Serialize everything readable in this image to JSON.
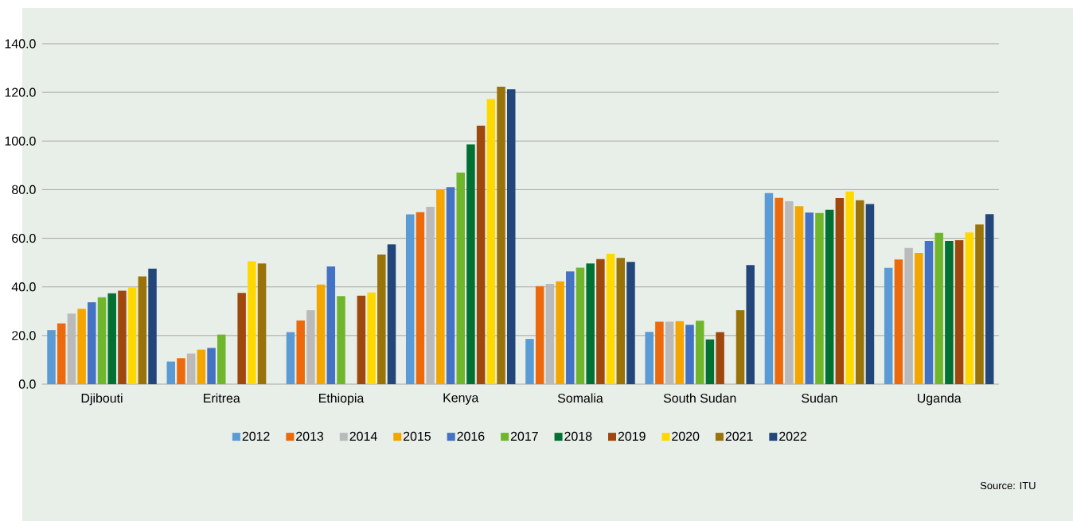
{
  "chart_data": {
    "type": "bar",
    "categories": [
      "Djibouti",
      "Eritrea",
      "Ethiopia",
      "Kenya",
      "Somalia",
      "South Sudan",
      "Sudan",
      "Uganda"
    ],
    "series": [
      {
        "name": "2012",
        "color": "#5b9bd5",
        "values": [
          22.2,
          9.3,
          21.4,
          69.8,
          18.6,
          21.5,
          78.6,
          47.8
        ]
      },
      {
        "name": "2013",
        "color": "#ed6a0c",
        "values": [
          25.0,
          10.7,
          26.2,
          70.7,
          40.3,
          25.7,
          76.6,
          51.3
        ]
      },
      {
        "name": "2014",
        "color": "#bababa",
        "values": [
          29.0,
          12.6,
          30.4,
          72.9,
          41.2,
          25.7,
          75.2,
          56.0
        ]
      },
      {
        "name": "2015",
        "color": "#f5a500",
        "values": [
          31.0,
          14.2,
          41.0,
          80.1,
          42.3,
          25.9,
          73.2,
          54.0
        ]
      },
      {
        "name": "2016",
        "color": "#4472c4",
        "values": [
          33.7,
          14.9,
          48.4,
          81.0,
          46.4,
          24.4,
          70.6,
          58.9
        ]
      },
      {
        "name": "2017",
        "color": "#70b62c",
        "values": [
          35.7,
          20.4,
          36.2,
          87.0,
          47.9,
          26.1,
          70.4,
          62.2
        ]
      },
      {
        "name": "2018",
        "color": "#007033",
        "values": [
          37.4,
          null,
          null,
          98.6,
          49.6,
          18.4,
          71.7,
          58.9
        ]
      },
      {
        "name": "2019",
        "color": "#9e480e",
        "values": [
          38.4,
          37.5,
          36.4,
          106.3,
          51.4,
          21.4,
          76.5,
          59.2
        ]
      },
      {
        "name": "2020",
        "color": "#ffd800",
        "values": [
          39.8,
          50.5,
          37.7,
          117.3,
          53.6,
          null,
          79.2,
          62.4
        ]
      },
      {
        "name": "2021",
        "color": "#997309",
        "values": [
          44.3,
          49.6,
          53.3,
          122.3,
          51.9,
          30.4,
          75.6,
          65.7
        ]
      },
      {
        "name": "2022",
        "color": "#22457a",
        "values": [
          47.5,
          null,
          57.5,
          121.3,
          50.3,
          49.0,
          74.1,
          69.9
        ]
      }
    ],
    "ylim": [
      0,
      140
    ],
    "yticks": [
      {
        "value": 0,
        "label": "0.0"
      },
      {
        "value": 20,
        "label": "20.0"
      },
      {
        "value": 40,
        "label": "40.0"
      },
      {
        "value": 60,
        "label": "60.0"
      },
      {
        "value": 80,
        "label": "80.0"
      },
      {
        "value": 100,
        "label": "100.0"
      },
      {
        "value": 120,
        "label": "120.0"
      },
      {
        "value": 140,
        "label": "140.0"
      }
    ],
    "grid": "y",
    "legend": "bottom",
    "annotations": [
      "Source: ITU"
    ]
  }
}
